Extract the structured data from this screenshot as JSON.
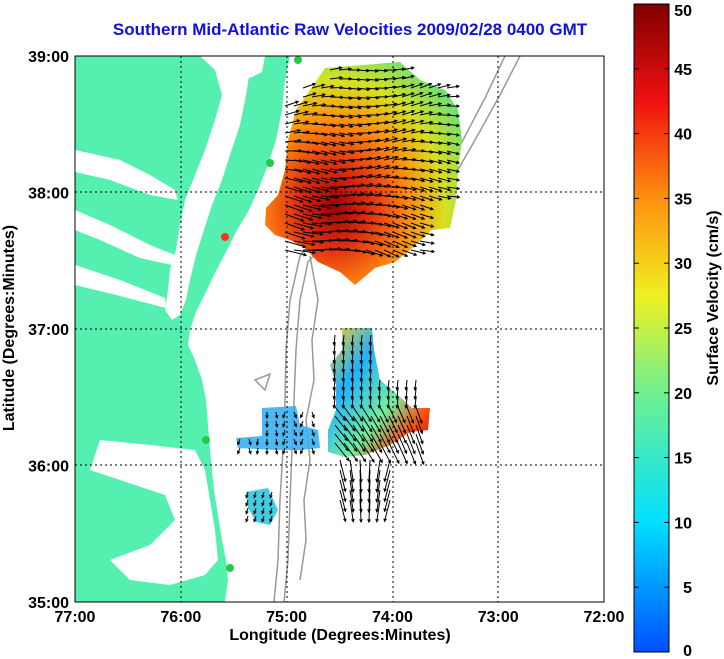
{
  "title": "Southern Mid-Atlantic Raw Velocities 2009/02/28 0400 GMT",
  "xlabel": "Longitude (Degrees:Minutes)",
  "ylabel": "Latitude (Degrees:Minutes)",
  "colorbar_label": "Surface Velocity (cm/s)",
  "x_ticks": [
    "77:00",
    "76:00",
    "75:00",
    "74:00",
    "73:00",
    "72:00"
  ],
  "y_ticks": [
    "39:00",
    "38:00",
    "37:00",
    "36:00",
    "35:00"
  ],
  "colorbar_ticks": [
    "50",
    "45",
    "40",
    "35",
    "30",
    "25",
    "20",
    "15",
    "10",
    "5",
    "0"
  ],
  "colors": {
    "title": "#1010e0",
    "land": "#55f0b0",
    "ocean": "#ffffff",
    "grid": "#000000",
    "bathymetry": "#999999",
    "station": "#22cc44",
    "station_active": "#ff3020"
  },
  "map_extent": {
    "lon_min": -77.0,
    "lon_max": -72.0,
    "lat_min": 35.0,
    "lat_max": 39.0
  },
  "colorbar_range": [
    0,
    50
  ]
}
